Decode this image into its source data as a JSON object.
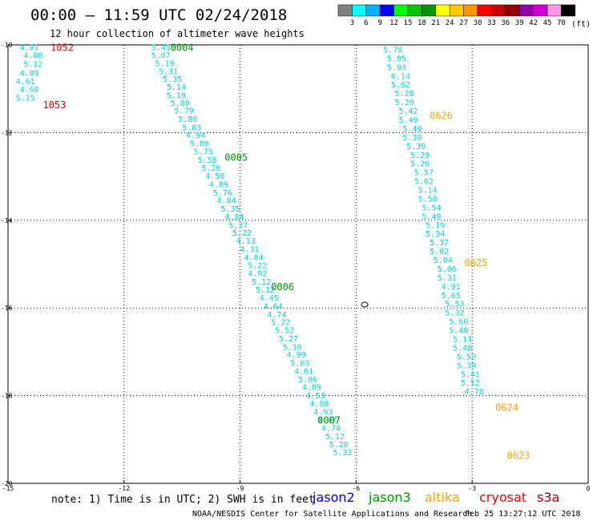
{
  "header": {
    "title": "00:00 – 11:59 UTC 02/24/2018",
    "subtitle": "12 hour collection of altimeter wave heights"
  },
  "colorbar": {
    "unit": "(ft)",
    "bins": [
      {
        "color": "#808080",
        "label": "3"
      },
      {
        "color": "#00ffff",
        "label": "6"
      },
      {
        "color": "#00b4ff",
        "label": "9"
      },
      {
        "color": "#0000ff",
        "label": "12"
      },
      {
        "color": "#00ff00",
        "label": "15"
      },
      {
        "color": "#00c800",
        "label": "18"
      },
      {
        "color": "#009600",
        "label": "21"
      },
      {
        "color": "#ffff00",
        "label": "24"
      },
      {
        "color": "#ffc800",
        "label": "27"
      },
      {
        "color": "#ff9600",
        "label": "30"
      },
      {
        "color": "#ff0000",
        "label": "33"
      },
      {
        "color": "#c80000",
        "label": "36"
      },
      {
        "color": "#960000",
        "label": "39"
      },
      {
        "color": "#9600aa",
        "label": "42"
      },
      {
        "color": "#d200d2",
        "label": "45"
      },
      {
        "color": "#ff96e6",
        "label": "70"
      },
      {
        "color": "#000000",
        "label": ""
      }
    ]
  },
  "axes": {
    "x_ticks": [
      "-15",
      "-12",
      "-9",
      "-6",
      "-3",
      "0"
    ],
    "y_ticks": [
      "-10",
      "-12",
      "-14",
      "-16",
      "-18",
      "-20"
    ]
  },
  "map_feature": "small island outline",
  "tracks": [
    {
      "name": "track-1",
      "labels": [
        {
          "text": "1052",
          "satellite": "cryosat",
          "lon": -13.9,
          "lat": -10.05
        },
        {
          "text": "1053",
          "satellite": "cryosat",
          "lon": -14.1,
          "lat": -11.35
        }
      ],
      "values": [
        {
          "v": "4.81",
          "lon": -14.7,
          "lat": -10.05
        },
        {
          "v": "4.80",
          "lon": -14.6,
          "lat": -10.23
        },
        {
          "v": "5.12",
          "lon": -14.6,
          "lat": -10.43
        },
        {
          "v": "4.09",
          "lon": -14.7,
          "lat": -10.63
        },
        {
          "v": "4.61",
          "lon": -14.8,
          "lat": -10.82
        },
        {
          "v": "4.60",
          "lon": -14.7,
          "lat": -11.01
        },
        {
          "v": "5.15",
          "lon": -14.8,
          "lat": -11.2
        }
      ]
    },
    {
      "name": "track-2",
      "labels": [
        {
          "text": "0004",
          "satellite": "jason3",
          "lon": -10.8,
          "lat": -10.05
        },
        {
          "text": "0005",
          "satellite": "jason3",
          "lon": -9.4,
          "lat": -12.55
        },
        {
          "text": "0006",
          "satellite": "jason3",
          "lon": -8.2,
          "lat": -15.5
        },
        {
          "text": "0007",
          "satellite": "jason3",
          "lon": -7.0,
          "lat": -18.55
        }
      ],
      "values": [
        {
          "v": "5.45",
          "lon": -11.3,
          "lat": -10.05
        },
        {
          "v": "5.07",
          "lon": -11.3,
          "lat": -10.23
        },
        {
          "v": "5.19",
          "lon": -11.2,
          "lat": -10.41
        },
        {
          "v": "5.31",
          "lon": -11.1,
          "lat": -10.59
        },
        {
          "v": "5.35",
          "lon": -11.0,
          "lat": -10.77
        },
        {
          "v": "5.14",
          "lon": -10.9,
          "lat": -10.95
        },
        {
          "v": "5.18",
          "lon": -10.9,
          "lat": -11.14
        },
        {
          "v": "5.80",
          "lon": -10.8,
          "lat": -11.32
        },
        {
          "v": "5.79",
          "lon": -10.7,
          "lat": -11.49
        },
        {
          "v": "5.86",
          "lon": -10.6,
          "lat": -11.68
        },
        {
          "v": "5.83",
          "lon": -10.5,
          "lat": -11.87
        },
        {
          "v": "4.94",
          "lon": -10.4,
          "lat": -12.05
        },
        {
          "v": "5.00",
          "lon": -10.3,
          "lat": -12.24
        },
        {
          "v": "5.75",
          "lon": -10.2,
          "lat": -12.42
        },
        {
          "v": "5.58",
          "lon": -10.1,
          "lat": -12.61
        },
        {
          "v": "5.20",
          "lon": -10.0,
          "lat": -12.8
        },
        {
          "v": "4.50",
          "lon": -9.9,
          "lat": -12.98
        },
        {
          "v": "4.89",
          "lon": -9.8,
          "lat": -13.17
        },
        {
          "v": "5.76",
          "lon": -9.7,
          "lat": -13.36
        },
        {
          "v": "4.84",
          "lon": -9.6,
          "lat": -13.54
        },
        {
          "v": "5.35",
          "lon": -9.5,
          "lat": -13.73
        },
        {
          "v": "4.84",
          "lon": -9.4,
          "lat": -13.91
        },
        {
          "v": "5.37",
          "lon": -9.3,
          "lat": -14.1
        },
        {
          "v": "5.22",
          "lon": -9.2,
          "lat": -14.28
        },
        {
          "v": "4.13",
          "lon": -9.1,
          "lat": -14.46
        },
        {
          "v": "4.31",
          "lon": -9.0,
          "lat": -14.65
        },
        {
          "v": "4.84",
          "lon": -8.9,
          "lat": -14.84
        },
        {
          "v": "5.22",
          "lon": -8.8,
          "lat": -15.02
        },
        {
          "v": "4.92",
          "lon": -8.8,
          "lat": -15.2
        },
        {
          "v": "5.12",
          "lon": -8.7,
          "lat": -15.39
        },
        {
          "v": "5.12",
          "lon": -8.6,
          "lat": -15.58
        },
        {
          "v": "4.45",
          "lon": -8.5,
          "lat": -15.76
        },
        {
          "v": "4.64",
          "lon": -8.4,
          "lat": -15.95
        },
        {
          "v": "4.74",
          "lon": -8.3,
          "lat": -16.14
        },
        {
          "v": "5.22",
          "lon": -8.2,
          "lat": -16.32
        },
        {
          "v": "5.52",
          "lon": -8.1,
          "lat": -16.5
        },
        {
          "v": "5.27",
          "lon": -8.0,
          "lat": -16.69
        },
        {
          "v": "5.10",
          "lon": -7.9,
          "lat": -16.88
        },
        {
          "v": "4.99",
          "lon": -7.8,
          "lat": -17.06
        },
        {
          "v": "5.63",
          "lon": -7.7,
          "lat": -17.25
        },
        {
          "v": "4.61",
          "lon": -7.6,
          "lat": -17.43
        },
        {
          "v": "5.06",
          "lon": -7.5,
          "lat": -17.62
        },
        {
          "v": "4.89",
          "lon": -7.4,
          "lat": -17.8
        },
        {
          "v": "4.53",
          "lon": -7.3,
          "lat": -17.99
        },
        {
          "v": "4.88",
          "lon": -7.2,
          "lat": -18.17
        },
        {
          "v": "4.93",
          "lon": -7.1,
          "lat": -18.36
        },
        {
          "v": "4.97",
          "lon": -7.0,
          "lat": -18.55
        },
        {
          "v": "4.74",
          "lon": -6.9,
          "lat": -18.73
        },
        {
          "v": "5.12",
          "lon": -6.8,
          "lat": -18.92
        },
        {
          "v": "5.20",
          "lon": -6.7,
          "lat": -19.1
        },
        {
          "v": "5.32",
          "lon": -6.6,
          "lat": -19.29
        }
      ]
    },
    {
      "name": "track-3",
      "labels": [
        {
          "text": "0626",
          "satellite": "altika",
          "lon": -4.1,
          "lat": -11.6
        },
        {
          "text": "0625",
          "satellite": "altika",
          "lon": -3.2,
          "lat": -14.95
        },
        {
          "text": "0624",
          "satellite": "altika",
          "lon": -2.4,
          "lat": -18.25
        },
        {
          "text": "0623",
          "satellite": "altika",
          "lon": -2.1,
          "lat": -19.35
        }
      ],
      "values": [
        {
          "v": "5.78",
          "lon": -5.3,
          "lat": -10.1
        },
        {
          "v": "5.85",
          "lon": -5.2,
          "lat": -10.3
        },
        {
          "v": "5.93",
          "lon": -5.2,
          "lat": -10.5
        },
        {
          "v": "6.14",
          "lon": -5.1,
          "lat": -10.7
        },
        {
          "v": "5.62",
          "lon": -5.1,
          "lat": -10.9
        },
        {
          "v": "5.28",
          "lon": -5.0,
          "lat": -11.1
        },
        {
          "v": "5.20",
          "lon": -5.0,
          "lat": -11.3
        },
        {
          "v": "5.42",
          "lon": -4.9,
          "lat": -11.5
        },
        {
          "v": "5.40",
          "lon": -4.9,
          "lat": -11.7
        },
        {
          "v": "5.49",
          "lon": -4.8,
          "lat": -11.9
        },
        {
          "v": "5.30",
          "lon": -4.8,
          "lat": -12.1
        },
        {
          "v": "5.39",
          "lon": -4.7,
          "lat": -12.3
        },
        {
          "v": "5.29",
          "lon": -4.6,
          "lat": -12.5
        },
        {
          "v": "5.26",
          "lon": -4.6,
          "lat": -12.7
        },
        {
          "v": "5.57",
          "lon": -4.5,
          "lat": -12.9
        },
        {
          "v": "5.62",
          "lon": -4.5,
          "lat": -13.1
        },
        {
          "v": "5.14",
          "lon": -4.4,
          "lat": -13.3
        },
        {
          "v": "5.58",
          "lon": -4.4,
          "lat": -13.5
        },
        {
          "v": "5.54",
          "lon": -4.3,
          "lat": -13.7
        },
        {
          "v": "5.49",
          "lon": -4.3,
          "lat": -13.9
        },
        {
          "v": "5.19",
          "lon": -4.2,
          "lat": -14.1
        },
        {
          "v": "5.34",
          "lon": -4.2,
          "lat": -14.3
        },
        {
          "v": "5.37",
          "lon": -4.1,
          "lat": -14.5
        },
        {
          "v": "5.02",
          "lon": -4.1,
          "lat": -14.7
        },
        {
          "v": "5.04",
          "lon": -4.0,
          "lat": -14.9
        },
        {
          "v": "5.06",
          "lon": -3.9,
          "lat": -15.1
        },
        {
          "v": "5.31",
          "lon": -3.9,
          "lat": -15.3
        },
        {
          "v": "4.91",
          "lon": -3.8,
          "lat": -15.5
        },
        {
          "v": "5.65",
          "lon": -3.8,
          "lat": -15.7
        },
        {
          "v": "5.53",
          "lon": -3.7,
          "lat": -15.9
        },
        {
          "v": "5.32",
          "lon": -3.7,
          "lat": -16.1
        },
        {
          "v": "5.60",
          "lon": -3.6,
          "lat": -16.3
        },
        {
          "v": "5.48",
          "lon": -3.6,
          "lat": -16.5
        },
        {
          "v": "5.11",
          "lon": -3.5,
          "lat": -16.7
        },
        {
          "v": "5.48",
          "lon": -3.5,
          "lat": -16.9
        },
        {
          "v": "5.52",
          "lon": -3.4,
          "lat": -17.1
        },
        {
          "v": "5.39",
          "lon": -3.4,
          "lat": -17.3
        },
        {
          "v": "5.41",
          "lon": -3.3,
          "lat": -17.5
        },
        {
          "v": "5.12",
          "lon": -3.3,
          "lat": -17.7
        },
        {
          "v": "4.78",
          "lon": -3.2,
          "lat": -17.9
        }
      ]
    }
  ],
  "footer": {
    "note": "note: 1) Time is in UTC; 2) SWH is in feet",
    "satellites": [
      {
        "name": "jason2",
        "color": "#0000e6"
      },
      {
        "name": "jason3",
        "color": "#009600"
      },
      {
        "name": "altika",
        "color": "#ffa000"
      },
      {
        "name": "cryosat",
        "color": "#e60000"
      },
      {
        "name": "s3a",
        "color": "#960000"
      }
    ],
    "credit": "NOAA/NESDIS Center for Satellite Applications and Research",
    "timestamp": "Feb 25 13:27:12 UTC 2018"
  },
  "colors": {
    "value_text": "#00d2d2",
    "grid": "#000000"
  }
}
